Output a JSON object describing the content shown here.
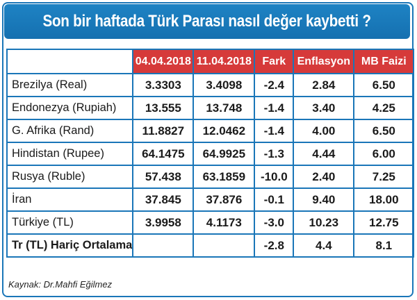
{
  "title": "Son bir haftada Türk Parası nasıl değer kaybetti ?",
  "headers": [
    "",
    "04.04.2018",
    "11.04.2018",
    "Fark",
    "Enflasyon",
    "MB Faizi"
  ],
  "rows": [
    [
      "Brezilya (Real)",
      "3.3303",
      "3.4098",
      "-2.4",
      "2.84",
      "6.50"
    ],
    [
      "Endonezya (Rupiah)",
      "13.555",
      "13.748",
      "-1.4",
      "3.40",
      "4.25"
    ],
    [
      "G. Afrika (Rand)",
      "11.8827",
      "12.0462",
      "-1.4",
      "4.00",
      "6.50"
    ],
    [
      "Hindistan (Rupee)",
      "64.1475",
      "64.9925",
      "-1.3",
      "4.44",
      "6.00"
    ],
    [
      "Rusya (Ruble)",
      "57.438",
      "63.1859",
      "-10.0",
      "2.40",
      "7.25"
    ],
    [
      "İran",
      "37.845",
      "37.876",
      "-0.1",
      "9.40",
      "18.00"
    ],
    [
      "Türkiye (TL)",
      "3.9958",
      "4.1173",
      "-3.0",
      "10.23",
      "12.75"
    ],
    [
      "Tr (TL) Hariç Ortalama",
      "",
      "",
      "-2.8",
      "4.4",
      "8.1"
    ]
  ],
  "source": "Kaynak: Dr.Mahfi Eğilmez",
  "colors": {
    "header_bg": "#d63a3a",
    "title_bg": "#1a76b8",
    "border": "#1a76b8"
  }
}
